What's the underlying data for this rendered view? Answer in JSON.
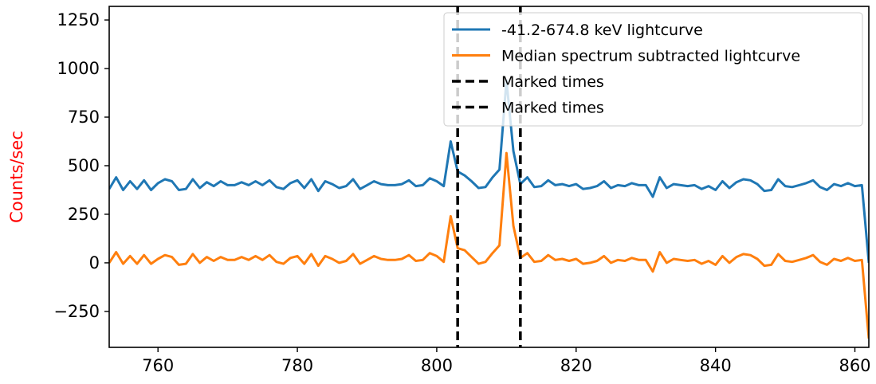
{
  "chart_data": {
    "type": "line",
    "ylabel": "Counts/sec",
    "ylabel_color": "#ff0000",
    "xlim": [
      753,
      862
    ],
    "ylim": [
      -435,
      1320
    ],
    "xticks": [
      760,
      780,
      800,
      820,
      840,
      860
    ],
    "yticks": [
      -250,
      0,
      250,
      500,
      750,
      1000,
      1250
    ],
    "ytick_labels": [
      "−250",
      "0",
      "250",
      "500",
      "750",
      "1000",
      "1250"
    ],
    "grid": false,
    "legend_position": "top-right",
    "series": [
      {
        "name": "-41.2-674.8 keV lightcurve",
        "color": "#1f77b4",
        "x": [
          753,
          754,
          755,
          756,
          757,
          758,
          759,
          760,
          761,
          762,
          763,
          764,
          765,
          766,
          767,
          768,
          769,
          770,
          771,
          772,
          773,
          774,
          775,
          776,
          777,
          778,
          779,
          780,
          781,
          782,
          783,
          784,
          785,
          786,
          787,
          788,
          789,
          790,
          791,
          792,
          793,
          794,
          795,
          796,
          797,
          798,
          799,
          800,
          801,
          802,
          803,
          804,
          805,
          806,
          807,
          808,
          809,
          810,
          811,
          812,
          813,
          814,
          815,
          816,
          817,
          818,
          819,
          820,
          821,
          822,
          823,
          824,
          825,
          826,
          827,
          828,
          829,
          830,
          831,
          832,
          833,
          834,
          835,
          836,
          837,
          838,
          839,
          840,
          841,
          842,
          843,
          844,
          845,
          846,
          847,
          848,
          849,
          850,
          851,
          852,
          853,
          854,
          855,
          856,
          857,
          858,
          859,
          860,
          861,
          862
        ],
        "y": [
          380,
          440,
          375,
          420,
          380,
          425,
          375,
          410,
          430,
          420,
          375,
          380,
          430,
          385,
          415,
          395,
          420,
          400,
          400,
          415,
          400,
          420,
          400,
          425,
          390,
          380,
          410,
          425,
          385,
          430,
          370,
          420,
          405,
          385,
          395,
          430,
          380,
          400,
          420,
          405,
          400,
          400,
          405,
          425,
          395,
          400,
          435,
          420,
          395,
          625,
          470,
          450,
          420,
          385,
          390,
          440,
          480,
          940,
          575,
          405,
          440,
          390,
          395,
          425,
          400,
          405,
          395,
          405,
          380,
          385,
          395,
          420,
          385,
          400,
          395,
          410,
          400,
          400,
          340,
          440,
          385,
          405,
          400,
          395,
          400,
          380,
          395,
          375,
          420,
          385,
          415,
          430,
          425,
          405,
          370,
          375,
          430,
          395,
          390,
          400,
          410,
          425,
          390,
          375,
          405,
          395,
          410,
          395,
          400,
          0
        ]
      },
      {
        "name": "Median spectrum subtracted lightcurve",
        "color": "#ff7f0e",
        "x": [
          753,
          754,
          755,
          756,
          757,
          758,
          759,
          760,
          761,
          762,
          763,
          764,
          765,
          766,
          767,
          768,
          769,
          770,
          771,
          772,
          773,
          774,
          775,
          776,
          777,
          778,
          779,
          780,
          781,
          782,
          783,
          784,
          785,
          786,
          787,
          788,
          789,
          790,
          791,
          792,
          793,
          794,
          795,
          796,
          797,
          798,
          799,
          800,
          801,
          802,
          803,
          804,
          805,
          806,
          807,
          808,
          809,
          810,
          811,
          812,
          813,
          814,
          815,
          816,
          817,
          818,
          819,
          820,
          821,
          822,
          823,
          824,
          825,
          826,
          827,
          828,
          829,
          830,
          831,
          832,
          833,
          834,
          835,
          836,
          837,
          838,
          839,
          840,
          841,
          842,
          843,
          844,
          845,
          846,
          847,
          848,
          849,
          850,
          851,
          852,
          853,
          854,
          855,
          856,
          857,
          858,
          859,
          860,
          861,
          862
        ],
        "y": [
          0,
          55,
          -5,
          35,
          -5,
          40,
          -5,
          20,
          40,
          30,
          -10,
          -5,
          45,
          0,
          30,
          10,
          30,
          15,
          15,
          30,
          15,
          35,
          15,
          40,
          5,
          -5,
          25,
          35,
          -5,
          45,
          -15,
          35,
          20,
          0,
          10,
          45,
          -5,
          15,
          35,
          20,
          15,
          15,
          20,
          40,
          10,
          15,
          50,
          35,
          5,
          240,
          75,
          65,
          30,
          -5,
          5,
          50,
          90,
          565,
          190,
          25,
          50,
          5,
          10,
          40,
          15,
          20,
          10,
          20,
          -5,
          0,
          10,
          35,
          0,
          15,
          10,
          25,
          15,
          15,
          -45,
          55,
          0,
          20,
          15,
          10,
          15,
          -5,
          10,
          -10,
          35,
          0,
          30,
          45,
          40,
          20,
          -15,
          -10,
          45,
          10,
          5,
          15,
          25,
          40,
          5,
          -10,
          20,
          10,
          25,
          10,
          15,
          -390
        ]
      }
    ],
    "marked_times": [
      {
        "name": "Marked times",
        "x": 803,
        "color": "#000000"
      },
      {
        "name": "Marked times",
        "x": 812,
        "color": "#000000"
      }
    ]
  }
}
